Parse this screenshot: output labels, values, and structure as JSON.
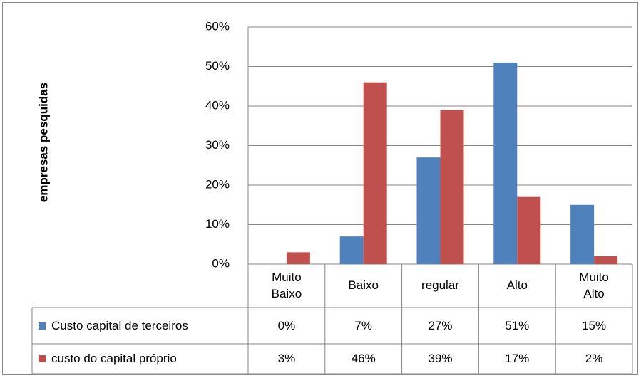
{
  "chart_data": {
    "type": "bar",
    "y_label": "empresas pesquidas",
    "categories": [
      "Muito Baixo",
      "Baixo",
      "regular",
      "Alto",
      "Muito Alto"
    ],
    "series": [
      {
        "name": "Custo capital de terceiros",
        "color": "#4f81bd",
        "values": [
          0,
          7,
          27,
          51,
          15
        ],
        "value_labels": [
          "0%",
          "7%",
          "27%",
          "51%",
          "15%"
        ]
      },
      {
        "name": "custo do capital próprio",
        "color": "#c0504d",
        "values": [
          3,
          46,
          39,
          17,
          2
        ],
        "value_labels": [
          "3%",
          "46%",
          "39%",
          "17%",
          "2%"
        ]
      }
    ],
    "ylim": [
      0,
      60
    ],
    "yticks": [
      {
        "value": 0,
        "label": "0%"
      },
      {
        "value": 10,
        "label": "10%"
      },
      {
        "value": 20,
        "label": "20%"
      },
      {
        "value": 30,
        "label": "30%"
      },
      {
        "value": 40,
        "label": "40%"
      },
      {
        "value": 50,
        "label": "50%"
      },
      {
        "value": 60,
        "label": "60%"
      }
    ],
    "grid": true
  }
}
